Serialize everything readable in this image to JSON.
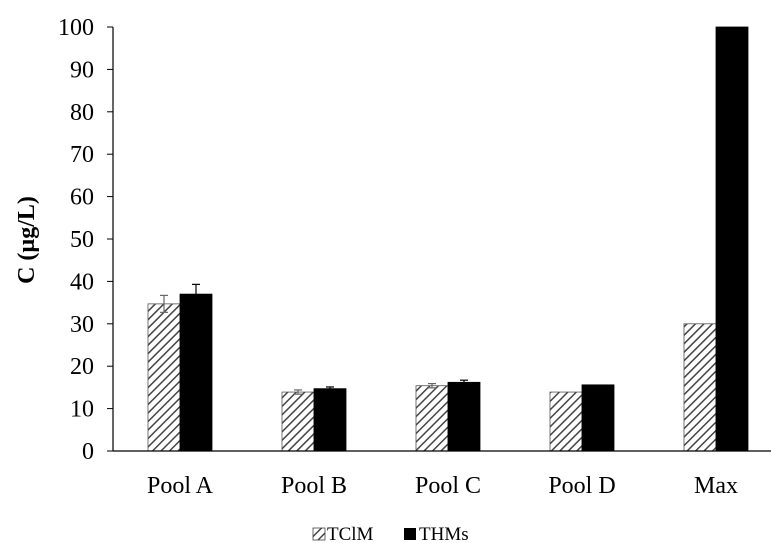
{
  "chart_data": {
    "type": "bar",
    "title": "",
    "xlabel": "",
    "ylabel": "C (µg/L)",
    "ylim": [
      0,
      100
    ],
    "yticks": [
      0,
      10,
      20,
      30,
      40,
      50,
      60,
      70,
      80,
      90,
      100
    ],
    "categories": [
      "Pool A",
      "Pool B",
      "Pool C",
      "Pool D",
      "Max"
    ],
    "series": [
      {
        "name": "TClM",
        "pattern": "diagonal-hatch",
        "color": "#555555",
        "values": [
          34.7,
          13.9,
          15.4,
          13.9,
          30
        ],
        "errors": [
          2.0,
          0.5,
          0.5,
          0,
          0
        ]
      },
      {
        "name": "THMs",
        "pattern": "solid",
        "color": "#000000",
        "values": [
          37.0,
          14.7,
          16.2,
          15.6,
          100
        ],
        "errors": [
          2.3,
          0.4,
          0.5,
          0,
          0
        ]
      }
    ],
    "grid": false,
    "legend": "bottom-center"
  }
}
